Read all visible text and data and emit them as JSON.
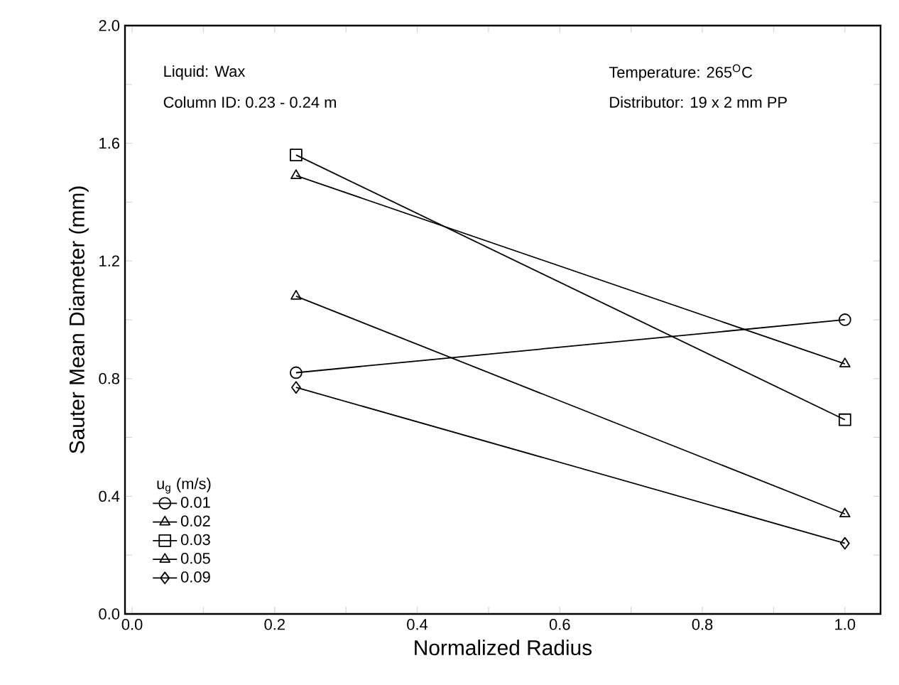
{
  "chart_data": {
    "type": "line",
    "xlabel": "Normalized Radius",
    "ylabel": "Sauter Mean Diameter (mm)",
    "legend_title": "u$_{g}$ (m/s)",
    "annotations": [
      "Liquid: Wax",
      "Column ID: 0.23 - 0.24 m",
      "Temperature: 265$^{O}$C",
      "Distributor: 19 x 2 mm PP"
    ],
    "x": [
      0.23,
      1.0
    ],
    "series": [
      {
        "name": "0.01",
        "color": "#000000",
        "marker": "circle",
        "values": [
          0.82,
          1.0
        ]
      },
      {
        "name": "0.02",
        "color": "#000000",
        "marker": "triangle",
        "values": [
          1.49,
          0.85
        ]
      },
      {
        "name": "0.03",
        "color": "#000000",
        "marker": "square",
        "values": [
          1.56,
          0.66
        ]
      },
      {
        "name": "0.05",
        "color": "#000000",
        "marker": "triangle-down",
        "values": [
          1.08,
          0.34
        ]
      },
      {
        "name": "0.09",
        "color": "#000000",
        "marker": "diamond",
        "values": [
          0.77,
          0.24
        ]
      }
    ],
    "xlim": [
      -0.01,
      1.05
    ],
    "ylim": [
      0,
      2.0
    ],
    "xticks": [
      {
        "value": 0,
        "label": "0.0"
      },
      {
        "value": 0.1,
        "label": null
      },
      0.2,
      {
        "value": 0.3,
        "label": null
      },
      0.4,
      {
        "value": 0.5,
        "label": null
      },
      0.6,
      {
        "value": 0.7,
        "label": null
      },
      0.8,
      {
        "value": 0.9,
        "label": null
      },
      {
        "value": 1,
        "label": "1.0"
      }
    ],
    "yticks": [
      {
        "value": 0,
        "label": "0.0"
      },
      {
        "value": 0.2,
        "label": null
      },
      0.4,
      {
        "value": 0.6,
        "label": null
      },
      0.8,
      {
        "value": 1.0,
        "label": null
      },
      1.2,
      {
        "value": 1.4,
        "label": null
      },
      1.6,
      {
        "value": 1.8,
        "label": null
      },
      {
        "value": 2,
        "label": "2.0"
      }
    ],
    "legend": "bottom left",
    "grid": false,
    "line_style": "solid"
  }
}
